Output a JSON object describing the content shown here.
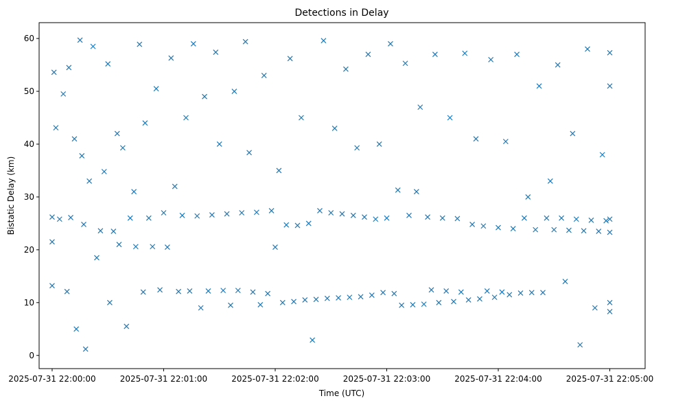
{
  "chart_data": {
    "type": "scatter",
    "title": "Detections in Delay",
    "xlabel": "Time (UTC)",
    "ylabel": "Bistatic Delay (km)",
    "x_ticks": [
      "2025-07-31 22:00:00",
      "2025-07-31 22:01:00",
      "2025-07-31 22:02:00",
      "2025-07-31 22:03:00",
      "2025-07-31 22:04:00",
      "2025-07-31 22:05:00"
    ],
    "y_ticks": [
      0,
      10,
      20,
      30,
      40,
      50,
      60
    ],
    "x_range": [
      "2025-07-31 21:59:53",
      "2025-07-31 22:05:19"
    ],
    "ylim": [
      -2.5,
      63
    ],
    "marker": "x",
    "grid": false,
    "colors": {
      "marker": "#1f77b4"
    },
    "series": [
      {
        "time_start": "2025-07-31 22:00:00",
        "time_end": "2025-07-31 22:05:00",
        "points": [
          [
            "22:00:00",
            26.2
          ],
          [
            "22:00:00",
            21.5
          ],
          [
            "22:00:00",
            13.2
          ],
          [
            "22:00:01",
            53.6
          ],
          [
            "22:00:02",
            43.1
          ],
          [
            "22:00:04",
            25.8
          ],
          [
            "22:00:06",
            49.5
          ],
          [
            "22:00:08",
            12.1
          ],
          [
            "22:00:09",
            54.5
          ],
          [
            "22:00:10",
            26.1
          ],
          [
            "22:00:12",
            41.0
          ],
          [
            "22:00:13",
            5.0
          ],
          [
            "22:00:15",
            59.7
          ],
          [
            "22:00:16",
            37.8
          ],
          [
            "22:00:17",
            24.8
          ],
          [
            "22:00:18",
            1.2
          ],
          [
            "22:00:20",
            33.0
          ],
          [
            "22:00:22",
            58.5
          ],
          [
            "22:00:24",
            18.5
          ],
          [
            "22:00:26",
            23.6
          ],
          [
            "22:00:28",
            34.8
          ],
          [
            "22:00:30",
            55.2
          ],
          [
            "22:00:31",
            10.0
          ],
          [
            "22:00:33",
            23.5
          ],
          [
            "22:00:35",
            42.0
          ],
          [
            "22:00:36",
            21.0
          ],
          [
            "22:00:38",
            39.3
          ],
          [
            "22:00:40",
            5.5
          ],
          [
            "22:00:42",
            26.0
          ],
          [
            "22:00:44",
            31.0
          ],
          [
            "22:00:45",
            20.6
          ],
          [
            "22:00:47",
            58.9
          ],
          [
            "22:00:49",
            12.0
          ],
          [
            "22:00:50",
            44.0
          ],
          [
            "22:00:52",
            26.0
          ],
          [
            "22:00:54",
            20.6
          ],
          [
            "22:00:56",
            50.5
          ],
          [
            "22:00:58",
            12.4
          ],
          [
            "22:01:00",
            27.0
          ],
          [
            "22:01:02",
            20.5
          ],
          [
            "22:01:04",
            56.3
          ],
          [
            "22:01:06",
            32.0
          ],
          [
            "22:01:08",
            12.1
          ],
          [
            "22:01:10",
            26.5
          ],
          [
            "22:01:12",
            45.0
          ],
          [
            "22:01:14",
            12.2
          ],
          [
            "22:01:16",
            59.0
          ],
          [
            "22:01:18",
            26.4
          ],
          [
            "22:01:20",
            9.0
          ],
          [
            "22:01:22",
            49.0
          ],
          [
            "22:01:24",
            12.2
          ],
          [
            "22:01:26",
            26.6
          ],
          [
            "22:01:28",
            57.4
          ],
          [
            "22:01:30",
            40.0
          ],
          [
            "22:01:32",
            12.3
          ],
          [
            "22:01:34",
            26.8
          ],
          [
            "22:01:36",
            9.5
          ],
          [
            "22:01:38",
            50.0
          ],
          [
            "22:01:40",
            12.3
          ],
          [
            "22:01:42",
            27.0
          ],
          [
            "22:01:44",
            59.4
          ],
          [
            "22:01:46",
            38.4
          ],
          [
            "22:01:48",
            12.0
          ],
          [
            "22:01:50",
            27.1
          ],
          [
            "22:01:52",
            9.6
          ],
          [
            "22:01:54",
            53.0
          ],
          [
            "22:01:56",
            11.7
          ],
          [
            "22:01:58",
            27.4
          ],
          [
            "22:02:00",
            20.5
          ],
          [
            "22:02:02",
            35.0
          ],
          [
            "22:02:04",
            10.0
          ],
          [
            "22:02:06",
            24.7
          ],
          [
            "22:02:08",
            56.2
          ],
          [
            "22:02:10",
            10.2
          ],
          [
            "22:02:12",
            24.6
          ],
          [
            "22:02:14",
            45.0
          ],
          [
            "22:02:16",
            10.5
          ],
          [
            "22:02:18",
            25.0
          ],
          [
            "22:02:20",
            2.9
          ],
          [
            "22:02:22",
            10.6
          ],
          [
            "22:02:24",
            27.4
          ],
          [
            "22:02:26",
            59.6
          ],
          [
            "22:02:28",
            10.8
          ],
          [
            "22:02:30",
            27.0
          ],
          [
            "22:02:32",
            43.0
          ],
          [
            "22:02:34",
            10.9
          ],
          [
            "22:02:36",
            26.8
          ],
          [
            "22:02:38",
            54.2
          ],
          [
            "22:02:40",
            11.0
          ],
          [
            "22:02:42",
            26.5
          ],
          [
            "22:02:44",
            39.3
          ],
          [
            "22:02:46",
            11.1
          ],
          [
            "22:02:48",
            26.2
          ],
          [
            "22:02:50",
            57.0
          ],
          [
            "22:02:52",
            11.4
          ],
          [
            "22:02:54",
            25.8
          ],
          [
            "22:02:56",
            40.0
          ],
          [
            "22:02:58",
            11.9
          ],
          [
            "22:03:00",
            26.0
          ],
          [
            "22:03:02",
            59.0
          ],
          [
            "22:03:04",
            11.7
          ],
          [
            "22:03:06",
            31.3
          ],
          [
            "22:03:08",
            9.5
          ],
          [
            "22:03:10",
            55.3
          ],
          [
            "22:03:12",
            26.5
          ],
          [
            "22:03:14",
            9.6
          ],
          [
            "22:03:16",
            31.0
          ],
          [
            "22:03:18",
            47.0
          ],
          [
            "22:03:20",
            9.7
          ],
          [
            "22:03:22",
            26.2
          ],
          [
            "22:03:24",
            12.4
          ],
          [
            "22:03:26",
            57.0
          ],
          [
            "22:03:28",
            10.0
          ],
          [
            "22:03:30",
            26.0
          ],
          [
            "22:03:32",
            12.2
          ],
          [
            "22:03:34",
            45.0
          ],
          [
            "22:03:36",
            10.2
          ],
          [
            "22:03:38",
            25.9
          ],
          [
            "22:03:40",
            12.0
          ],
          [
            "22:03:42",
            57.2
          ],
          [
            "22:03:44",
            10.5
          ],
          [
            "22:03:46",
            24.8
          ],
          [
            "22:03:48",
            41.0
          ],
          [
            "22:03:50",
            10.7
          ],
          [
            "22:03:52",
            24.5
          ],
          [
            "22:03:54",
            12.2
          ],
          [
            "22:03:56",
            56.0
          ],
          [
            "22:03:58",
            11.0
          ],
          [
            "22:04:00",
            24.2
          ],
          [
            "22:04:02",
            12.0
          ],
          [
            "22:04:04",
            40.5
          ],
          [
            "22:04:06",
            11.5
          ],
          [
            "22:04:08",
            24.0
          ],
          [
            "22:04:10",
            57.0
          ],
          [
            "22:04:12",
            11.8
          ],
          [
            "22:04:14",
            26.0
          ],
          [
            "22:04:16",
            30.0
          ],
          [
            "22:04:18",
            11.9
          ],
          [
            "22:04:20",
            23.8
          ],
          [
            "22:04:22",
            51.0
          ],
          [
            "22:04:24",
            11.9
          ],
          [
            "22:04:26",
            26.0
          ],
          [
            "22:04:28",
            33.0
          ],
          [
            "22:04:30",
            23.8
          ],
          [
            "22:04:32",
            55.0
          ],
          [
            "22:04:34",
            26.0
          ],
          [
            "22:04:36",
            14.0
          ],
          [
            "22:04:38",
            23.7
          ],
          [
            "22:04:40",
            42.0
          ],
          [
            "22:04:42",
            25.8
          ],
          [
            "22:04:44",
            2.0
          ],
          [
            "22:04:46",
            23.6
          ],
          [
            "22:04:48",
            58.0
          ],
          [
            "22:04:50",
            25.6
          ],
          [
            "22:04:52",
            9.0
          ],
          [
            "22:04:54",
            23.5
          ],
          [
            "22:04:56",
            38.0
          ],
          [
            "22:04:58",
            25.5
          ],
          [
            "22:05:00",
            57.3
          ],
          [
            "22:05:00",
            51.0
          ],
          [
            "22:05:00",
            25.8
          ],
          [
            "22:05:00",
            23.3
          ],
          [
            "22:05:00",
            10.0
          ],
          [
            "22:05:00",
            8.3
          ]
        ]
      }
    ]
  }
}
